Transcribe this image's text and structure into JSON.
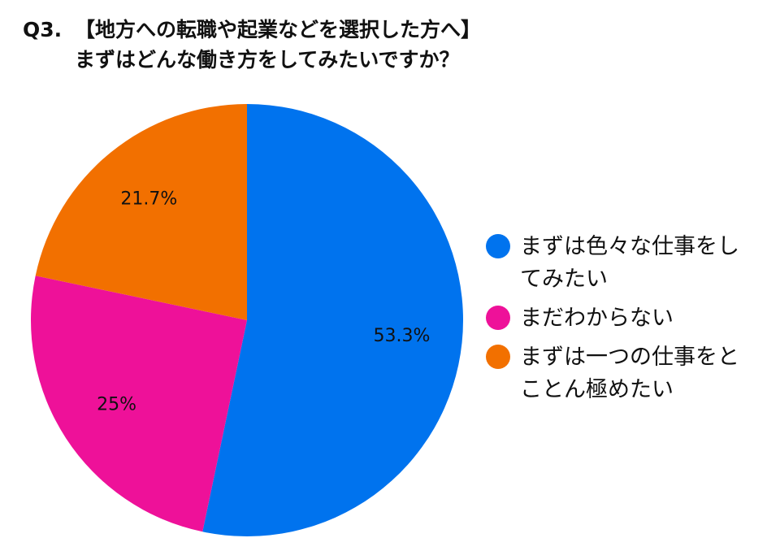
{
  "chart_data": {
    "type": "pie",
    "title_prefix": "Q3.",
    "title": "【地方への転職や起業などを選択した方へ】",
    "subtitle": "まずはどんな働き方をしてみたいですか？",
    "slices": [
      {
        "label": "まずは色々な仕事をしてみたい",
        "value": 53.3,
        "display": "53.3%",
        "color": "#0073EE"
      },
      {
        "label": "まだわからない",
        "value": 25,
        "display": "25%",
        "color": "#EE1199"
      },
      {
        "label": "まずは一つの仕事をとことん極めたい",
        "value": 21.7,
        "display": "21.7%",
        "color": "#F27000"
      }
    ],
    "legend_position": "right"
  }
}
